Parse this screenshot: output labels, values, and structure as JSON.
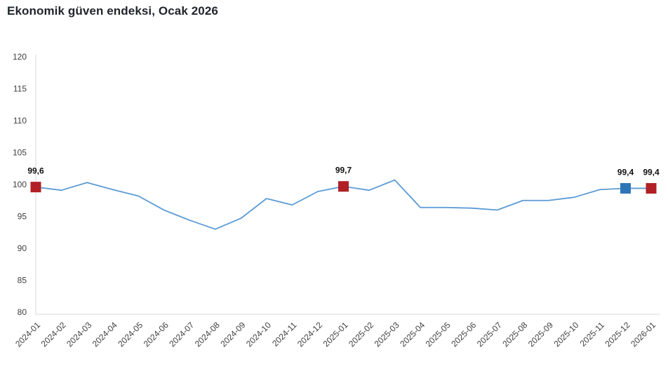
{
  "page": {
    "title": "Ekonomik güven endeksi, Ocak 2026"
  },
  "chart_data": {
    "type": "line",
    "title": "Ekonomik güven endeksi, Ocak 2026",
    "categories": [
      "2024-01",
      "2024-02",
      "2024-03",
      "2024-04",
      "2024-05",
      "2024-06",
      "2024-07",
      "2024-08",
      "2024-09",
      "2024-10",
      "2024-11",
      "2024-12",
      "2025-01",
      "2025-02",
      "2025-03",
      "2025-04",
      "2025-05",
      "2025-06",
      "2025-07",
      "2025-08",
      "2025-09",
      "2025-10",
      "2025-11",
      "2025-12",
      "2026-01"
    ],
    "series": [
      {
        "name": "Ekonomik güven endeksi",
        "values": [
          99.6,
          99.1,
          100.3,
          99.2,
          98.2,
          96.0,
          94.4,
          93.0,
          94.7,
          97.8,
          96.8,
          98.9,
          99.7,
          99.1,
          100.7,
          96.4,
          96.4,
          96.3,
          96.0,
          97.5,
          97.5,
          98.0,
          99.2,
          99.4,
          99.4
        ]
      }
    ],
    "labeled_points": [
      {
        "index": 0,
        "category": "2024-01",
        "label": "99,6",
        "marker": "square",
        "color": "#b02025"
      },
      {
        "index": 12,
        "category": "2025-01",
        "label": "99,7",
        "marker": "square",
        "color": "#b02025"
      },
      {
        "index": 23,
        "category": "2025-12",
        "label": "99,4",
        "marker": "square",
        "color": "#2e75b6"
      },
      {
        "index": 24,
        "category": "2026-01",
        "label": "99,4",
        "marker": "square",
        "color": "#b02025"
      }
    ],
    "xlabel": "",
    "ylabel": "",
    "ylim": [
      80,
      120
    ],
    "y_ticks": [
      80,
      85,
      90,
      95,
      100,
      105,
      110,
      115,
      120
    ],
    "x_tick_rotation": -45,
    "grid": false,
    "legend": "none",
    "line_color": "#5b9bd5",
    "axis_color": "#d9d9d9",
    "tick_label_color": "#404040",
    "background_color": "#ffffff"
  }
}
